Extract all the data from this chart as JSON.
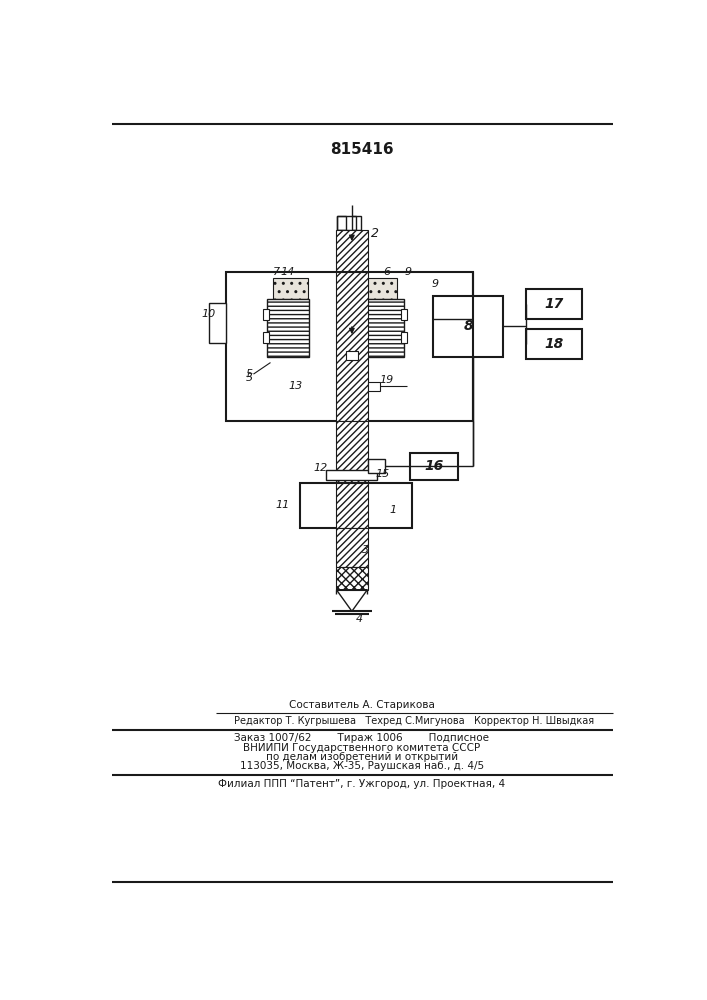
{
  "patent_number": "815416",
  "bg_color": "#ffffff",
  "line_color": "#1a1a1a",
  "footer_lines": [
    "Составитель А. Старикова",
    "Редактор Т. Кугрышева   Техред С.Мигунова   Корректор Н. Швыдкая",
    "Заказ 1007/62        Тираж 1006        Подписное",
    "ВНИИПИ Государственного комитета СССР",
    "по делам изобретений и открытий",
    "113035, Москва, Ж-35, Раушская наб., д. 4/5",
    "Филиал ППП “Патент”, г. Ужгород, ул. Проектная, 4"
  ]
}
